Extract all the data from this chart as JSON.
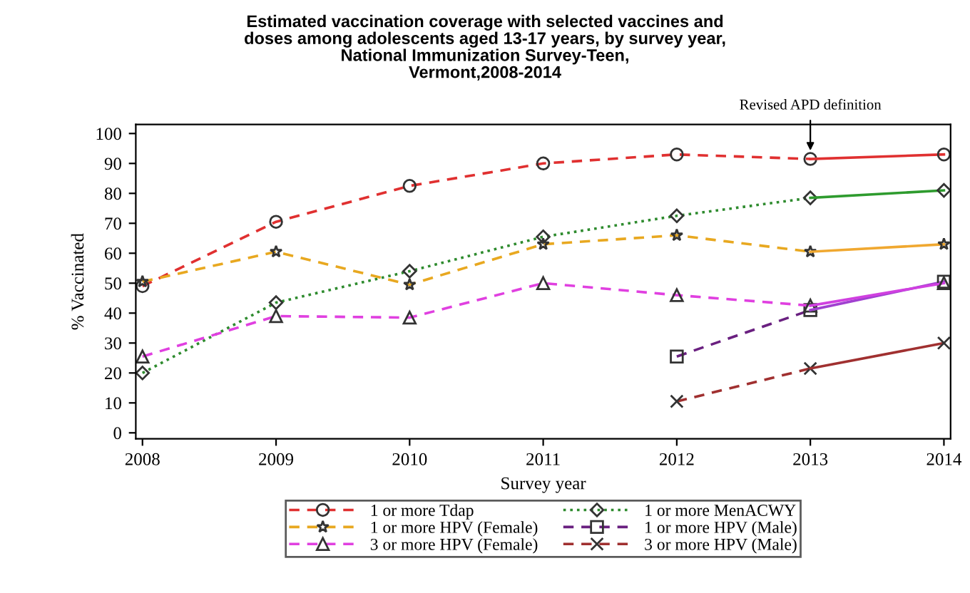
{
  "chart_data": {
    "type": "line",
    "title": "Estimated vaccination coverage with selected vaccines and\ndoses among adolescents aged 13-17 years, by survey year,\nNational Immunization Survey-Teen,\nVermont,2008-2014",
    "xlabel": "Survey year",
    "ylabel": "% Vaccinated",
    "x": [
      2008,
      2009,
      2010,
      2011,
      2012,
      2013,
      2014
    ],
    "xlim": [
      2007.95,
      2014.05
    ],
    "xticks": [
      2008,
      2009,
      2010,
      2011,
      2012,
      2013,
      2014
    ],
    "ylim": [
      -2,
      103
    ],
    "yticks": [
      0,
      10,
      20,
      30,
      40,
      50,
      60,
      70,
      80,
      90,
      100
    ],
    "grid": false,
    "legend": "bottom",
    "annotations": [
      {
        "text": "Revised APD definition",
        "x": 2013,
        "y": 93
      }
    ],
    "series": [
      {
        "name": "1 or more Tdap",
        "color": "#e03030",
        "values": [
          49,
          70.5,
          82.5,
          90,
          93,
          91.5,
          null
        ],
        "marker": "circle",
        "line_style": "dashed"
      },
      {
        "name": "1 or more MenACWY",
        "color": "#2e8b2e",
        "values": [
          20,
          43.5,
          54,
          65.5,
          72.5,
          78.5,
          null
        ],
        "marker": "diamond",
        "line_style": "dotted"
      },
      {
        "name": "1 or more HPV (Female)",
        "color": "#e8a820",
        "values": [
          50.5,
          60.5,
          49.5,
          63,
          66,
          60.5,
          null
        ],
        "marker": "star",
        "line_style": "dashed"
      },
      {
        "name": "1 or more HPV (Male)",
        "color": "#6a2080",
        "values": [
          null,
          null,
          null,
          null,
          25.5,
          41,
          null
        ],
        "marker": "square",
        "line_style": "dashed"
      },
      {
        "name": "3 or more HPV (Female)",
        "color": "#e040e0",
        "values": [
          25.5,
          39,
          38.5,
          50,
          46,
          42.5,
          null
        ],
        "marker": "triangle",
        "line_style": "dashed"
      },
      {
        "name": "3 or more HPV (Male)",
        "color": "#a03030",
        "values": [
          null,
          null,
          null,
          null,
          10.5,
          21.5,
          null
        ],
        "marker": "cross",
        "line_style": "dashed"
      },
      {
        "color": "#e03030",
        "values": [
          null,
          null,
          null,
          null,
          null,
          91.5,
          93
        ],
        "marker": "circle",
        "line_style": "solid"
      },
      {
        "color": "#2e9b2e",
        "values": [
          null,
          null,
          null,
          null,
          null,
          78.5,
          81
        ],
        "marker": "diamond",
        "line_style": "solid"
      },
      {
        "color": "#f0a830",
        "values": [
          null,
          null,
          null,
          null,
          null,
          60.5,
          63
        ],
        "marker": "star",
        "line_style": "solid"
      },
      {
        "color": "#a040d0",
        "values": [
          null,
          null,
          null,
          null,
          null,
          41,
          50.5
        ],
        "marker": "square",
        "line_style": "solid"
      },
      {
        "color": "#d040e0",
        "values": [
          null,
          null,
          null,
          null,
          null,
          42.5,
          50
        ],
        "marker": "triangle",
        "line_style": "solid"
      },
      {
        "color": "#a03030",
        "values": [
          null,
          null,
          null,
          null,
          null,
          21.5,
          30
        ],
        "marker": "cross",
        "line_style": "solid"
      }
    ]
  }
}
